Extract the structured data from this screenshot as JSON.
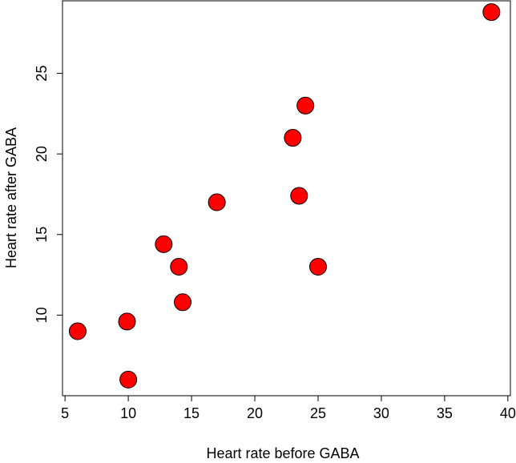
{
  "chart_data": {
    "type": "scatter",
    "title": "",
    "xlabel": "Heart rate before GABA",
    "ylabel": "Heart rate after GABA",
    "xlim": [
      4.8,
      40.2
    ],
    "ylim": [
      5.0,
      29.5
    ],
    "xticks": [
      5,
      10,
      15,
      20,
      25,
      30,
      35,
      40
    ],
    "yticks": [
      10,
      15,
      20,
      25
    ],
    "grid": false,
    "legend": "none",
    "marker_fill": "#ff0000",
    "marker_stroke": "#000000",
    "points": [
      {
        "x": 6.0,
        "y": 9.0
      },
      {
        "x": 9.9,
        "y": 9.6
      },
      {
        "x": 10.0,
        "y": 6.0
      },
      {
        "x": 12.8,
        "y": 14.4
      },
      {
        "x": 14.0,
        "y": 13.0
      },
      {
        "x": 14.3,
        "y": 10.8
      },
      {
        "x": 17.0,
        "y": 17.0
      },
      {
        "x": 23.0,
        "y": 21.0
      },
      {
        "x": 23.5,
        "y": 17.4
      },
      {
        "x": 24.0,
        "y": 23.0
      },
      {
        "x": 25.0,
        "y": 13.0
      },
      {
        "x": 38.7,
        "y": 28.8
      }
    ]
  }
}
